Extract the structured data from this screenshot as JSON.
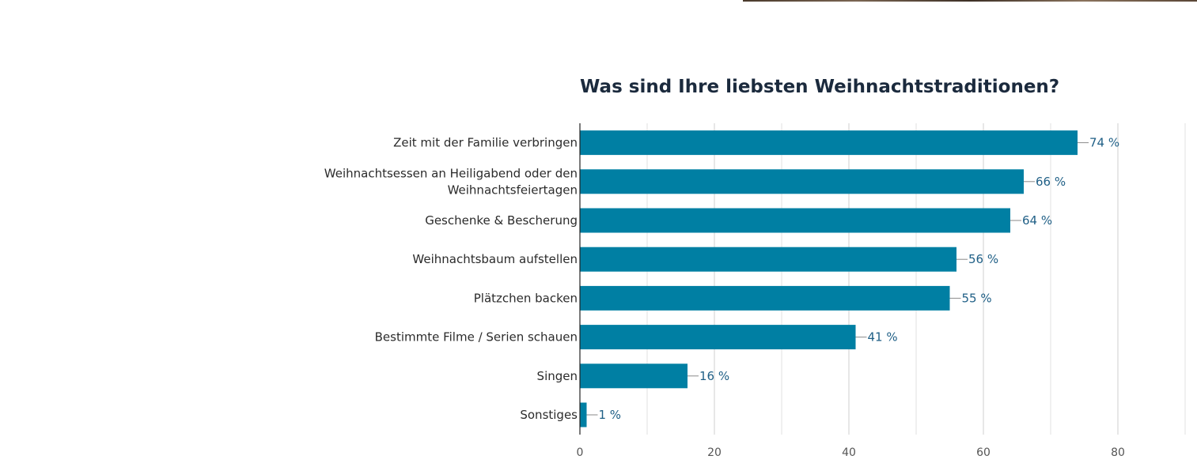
{
  "chart_data": {
    "type": "bar",
    "orientation": "horizontal",
    "title": "Was sind Ihre liebsten Weihnachtstraditionen?",
    "xlabel": "",
    "ylabel": "",
    "categories": [
      [
        "Zeit mit der Familie verbringen"
      ],
      [
        "Weihnachtsessen an Heiligabend oder den",
        "Weihnachtsfeiertagen"
      ],
      [
        "Geschenke & Bescherung"
      ],
      [
        "Weihnachtsbaum aufstellen"
      ],
      [
        "Plätzchen backen"
      ],
      [
        "Bestimmte Filme / Serien schauen"
      ],
      [
        "Singen"
      ],
      [
        "Sonstiges"
      ]
    ],
    "values": [
      74,
      66,
      64,
      56,
      55,
      41,
      16,
      1
    ],
    "value_labels": [
      "74 %",
      "66 %",
      "64 %",
      "56 %",
      "55 %",
      "41 %",
      "16 %",
      "1 %"
    ],
    "xlim": [
      0,
      90
    ],
    "xticks": [
      0,
      20,
      40,
      60,
      80
    ],
    "grid": true,
    "legend": "none",
    "colors": {
      "bar": "#007fa3",
      "label": "#1f5f86",
      "grid": "#e2e2e2",
      "axis": "#222222"
    }
  }
}
